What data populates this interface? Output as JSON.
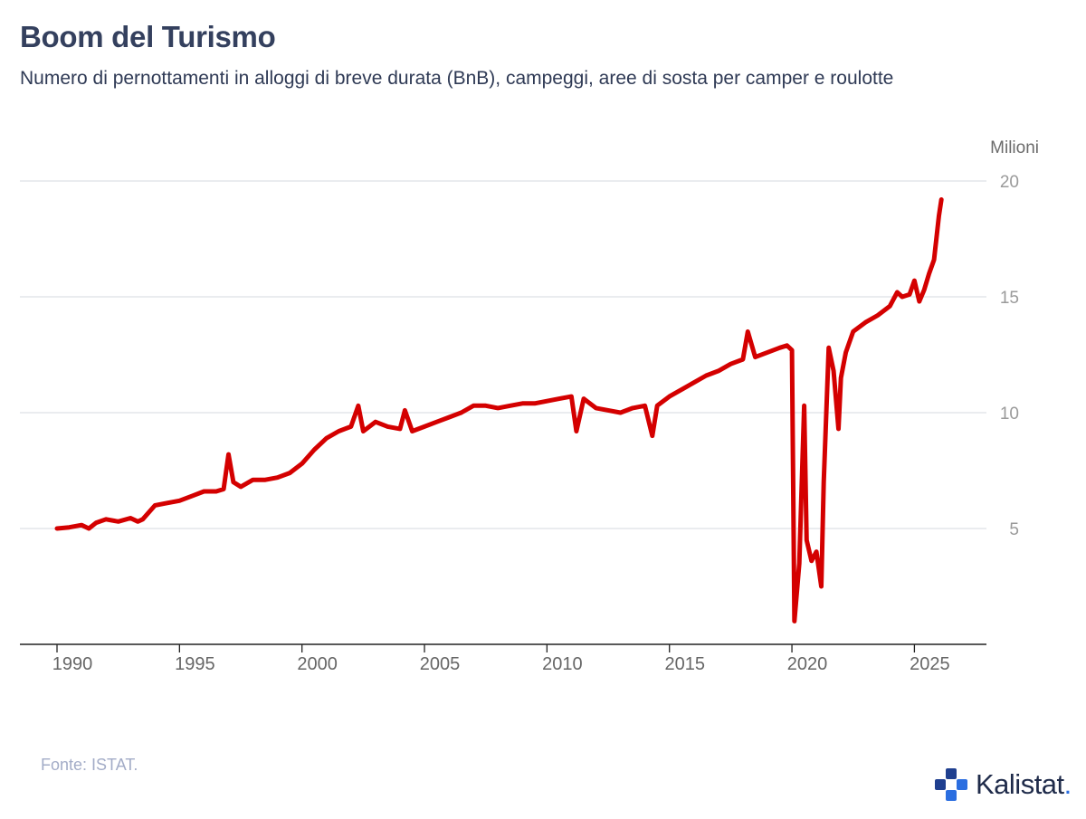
{
  "header": {
    "title": "Boom del Turismo",
    "subtitle": "Numero di pernottamenti in alloggi di breve durata (BnB), campeggi, aree di sosta per camper e roulotte"
  },
  "footer": {
    "source": "Fonte: ISTAT.",
    "brand_name": "Kalistat",
    "brand_dot": "."
  },
  "colors": {
    "line": "#d40000",
    "grid": "#e3e6ea",
    "tick_text": "#9a9a9a",
    "axis": "#222222",
    "brand_primary": "#1f3f8f",
    "brand_accent": "#2b6ee0"
  },
  "chart_data": {
    "type": "line",
    "title": "Boom del Turismo",
    "ylabel": "Milioni",
    "xlim": [
      1990,
      2026.5
    ],
    "ylim": [
      0,
      20
    ],
    "yticks": [
      5,
      10,
      15,
      20
    ],
    "ytick_labels": [
      "5",
      "10",
      "15",
      "20"
    ],
    "xticks": [
      1990,
      1995,
      2000,
      2005,
      2010,
      2015,
      2020,
      2025
    ],
    "xtick_labels": [
      "1990",
      "1995",
      "2000",
      "2005",
      "2010",
      "2015",
      "2020",
      "2025"
    ],
    "grid": true,
    "legend": "none",
    "series": [
      {
        "x": [
          1990.0,
          1990.5,
          1991.0,
          1991.3,
          1991.6,
          1992.0,
          1992.5,
          1993.0,
          1993.3,
          1993.5,
          1994.0,
          1994.5,
          1995.0,
          1995.5,
          1996.0,
          1996.5,
          1996.8,
          1997.0,
          1997.2,
          1997.5,
          1998.0,
          1998.5,
          1999.0,
          1999.5,
          2000.0,
          2000.5,
          2001.0,
          2001.5,
          2002.0,
          2002.3,
          2002.5,
          2003.0,
          2003.5,
          2004.0,
          2004.2,
          2004.5,
          2005.0,
          2005.5,
          2006.0,
          2006.5,
          2007.0,
          2007.5,
          2008.0,
          2008.5,
          2009.0,
          2009.5,
          2010.0,
          2010.5,
          2011.0,
          2011.2,
          2011.5,
          2012.0,
          2012.5,
          2013.0,
          2013.5,
          2014.0,
          2014.3,
          2014.5,
          2015.0,
          2015.5,
          2016.0,
          2016.5,
          2017.0,
          2017.5,
          2018.0,
          2018.2,
          2018.5,
          2019.0,
          2019.5,
          2019.8,
          2020.0,
          2020.1,
          2020.3,
          2020.5,
          2020.6,
          2020.8,
          2021.0,
          2021.2,
          2021.3,
          2021.5,
          2021.7,
          2021.9,
          2022.0,
          2022.2,
          2022.5,
          2023.0,
          2023.5,
          2024.0,
          2024.3,
          2024.5,
          2024.8,
          2025.0,
          2025.2,
          2025.4,
          2025.6,
          2025.8,
          2026.0,
          2026.1
        ],
        "values": [
          5.0,
          5.05,
          5.15,
          5.0,
          5.25,
          5.4,
          5.3,
          5.45,
          5.3,
          5.4,
          6.0,
          6.1,
          6.2,
          6.4,
          6.6,
          6.6,
          6.7,
          8.2,
          7.0,
          6.8,
          7.1,
          7.1,
          7.2,
          7.4,
          7.8,
          8.4,
          8.9,
          9.2,
          9.4,
          10.3,
          9.2,
          9.6,
          9.4,
          9.3,
          10.1,
          9.2,
          9.4,
          9.6,
          9.8,
          10.0,
          10.3,
          10.3,
          10.2,
          10.3,
          10.4,
          10.4,
          10.5,
          10.6,
          10.7,
          9.2,
          10.6,
          10.2,
          10.1,
          10.0,
          10.2,
          10.3,
          9.0,
          10.3,
          10.7,
          11.0,
          11.3,
          11.6,
          11.8,
          12.1,
          12.3,
          13.5,
          12.4,
          12.6,
          12.8,
          12.9,
          12.7,
          1.0,
          3.5,
          10.3,
          4.5,
          3.6,
          4.0,
          2.5,
          7.0,
          12.8,
          11.8,
          9.3,
          11.5,
          12.6,
          13.5,
          13.9,
          14.2,
          14.6,
          15.2,
          15.0,
          15.1,
          15.7,
          14.8,
          15.3,
          16.0,
          16.6,
          18.5,
          19.2
        ]
      }
    ]
  }
}
